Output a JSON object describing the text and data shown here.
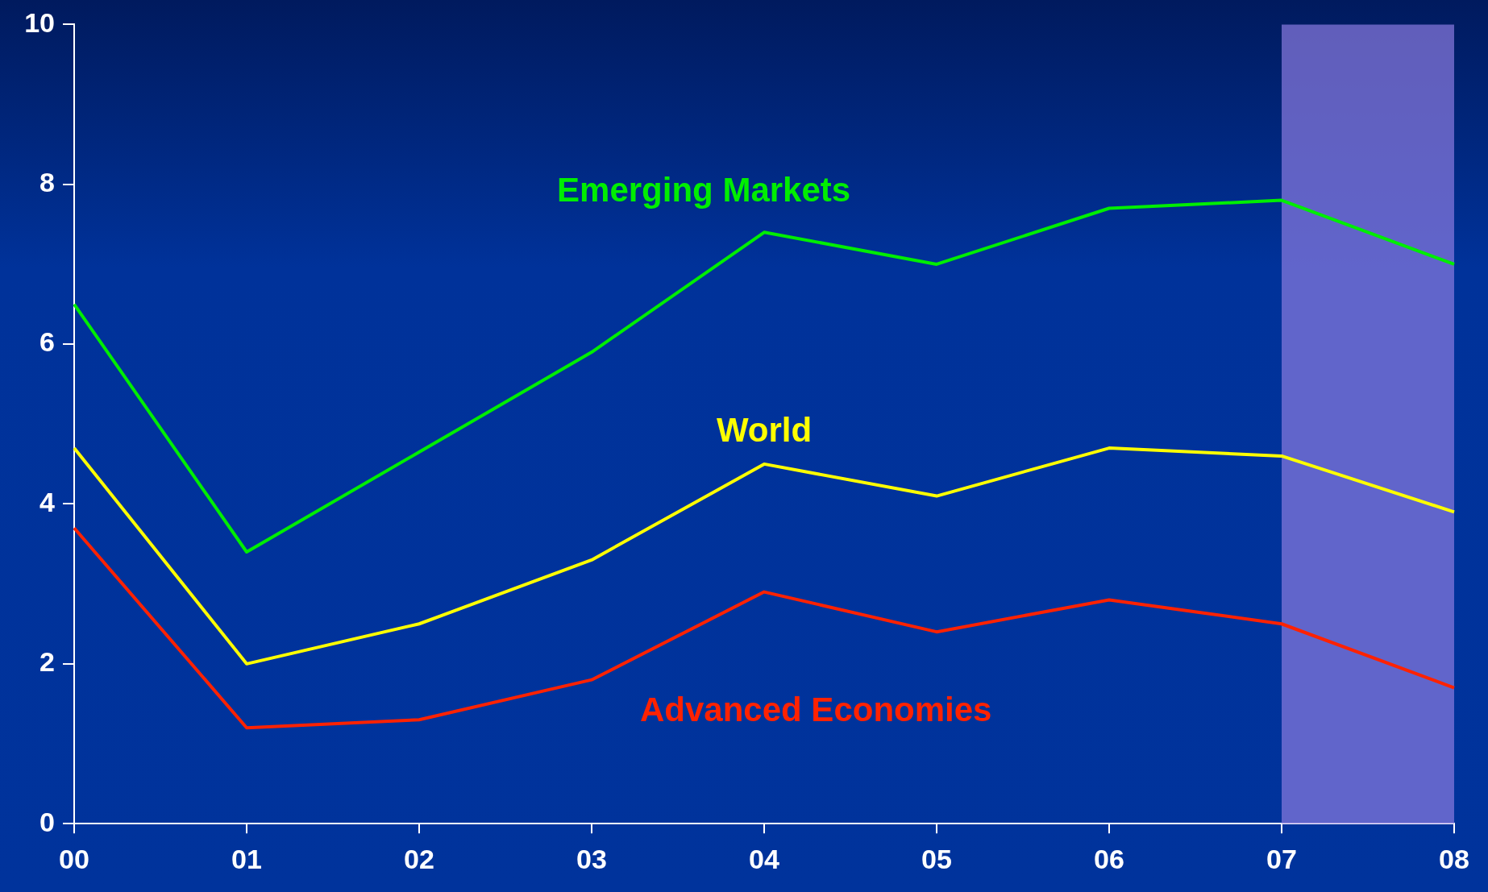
{
  "chart_data": {
    "type": "line",
    "categories": [
      "00",
      "01",
      "02",
      "03",
      "04",
      "05",
      "06",
      "07",
      "08"
    ],
    "series": [
      {
        "name": "Emerging Markets",
        "color": "#00ee00",
        "values": [
          6.5,
          3.4,
          4.65,
          5.9,
          7.4,
          7.0,
          7.7,
          7.8,
          7.0
        ]
      },
      {
        "name": "World",
        "color": "#ffff00",
        "values": [
          4.7,
          2.0,
          2.5,
          3.3,
          4.5,
          4.1,
          4.7,
          4.6,
          3.9
        ]
      },
      {
        "name": "Advanced Economies",
        "color": "#ff2200",
        "values": [
          3.7,
          1.2,
          1.3,
          1.8,
          2.9,
          2.4,
          2.8,
          2.5,
          1.7
        ]
      }
    ],
    "ylim": [
      0,
      10
    ],
    "yticks": [
      0,
      2,
      4,
      6,
      8,
      10
    ],
    "grid": false,
    "legend": false,
    "marker": "none",
    "line_style": "solid",
    "bands": [
      {
        "axis": "x",
        "from": "07",
        "to": "08",
        "color": "#8a7ae0"
      }
    ]
  }
}
